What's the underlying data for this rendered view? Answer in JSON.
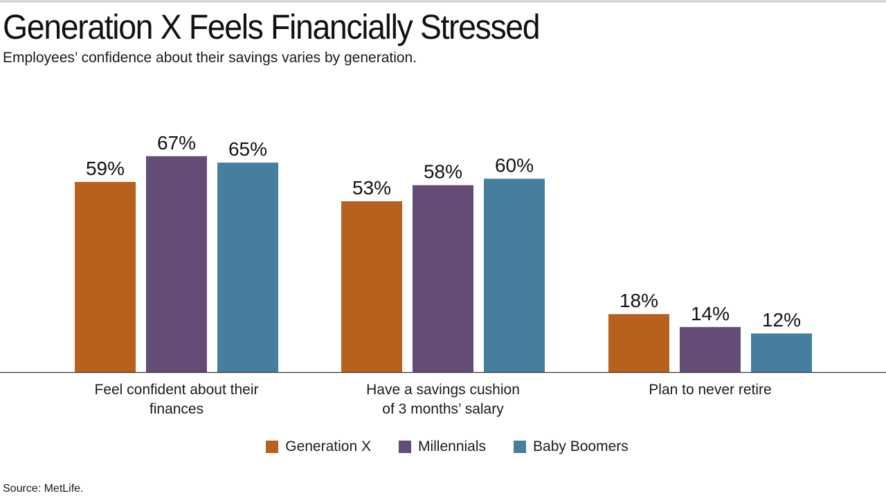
{
  "header": {
    "title": "Generation X Feels Financially Stressed",
    "subtitle": "Employees’ confidence about their savings varies by generation."
  },
  "footer": {
    "source": "Source: MetLife."
  },
  "chart_data": {
    "type": "bar",
    "title": "Generation X Feels Financially Stressed",
    "subtitle": "Employees’ confidence about their savings varies by generation.",
    "categories": [
      [
        "Feel confident about their",
        "finances"
      ],
      [
        "Have a savings cushion",
        "of 3 months’ salary"
      ],
      [
        "Plan to never retire"
      ]
    ],
    "series": [
      {
        "name": "Generation X",
        "color": "#B8601E",
        "values": [
          59,
          53,
          18
        ]
      },
      {
        "name": "Millennials",
        "color": "#634D77",
        "values": [
          67,
          58,
          14
        ]
      },
      {
        "name": "Baby Boomers",
        "color": "#477E9E",
        "values": [
          65,
          60,
          12
        ]
      }
    ],
    "value_suffix": "%",
    "ylim": [
      0,
      100
    ],
    "grid": false,
    "legend_position": "bottom",
    "baseline_color": "#333333"
  }
}
